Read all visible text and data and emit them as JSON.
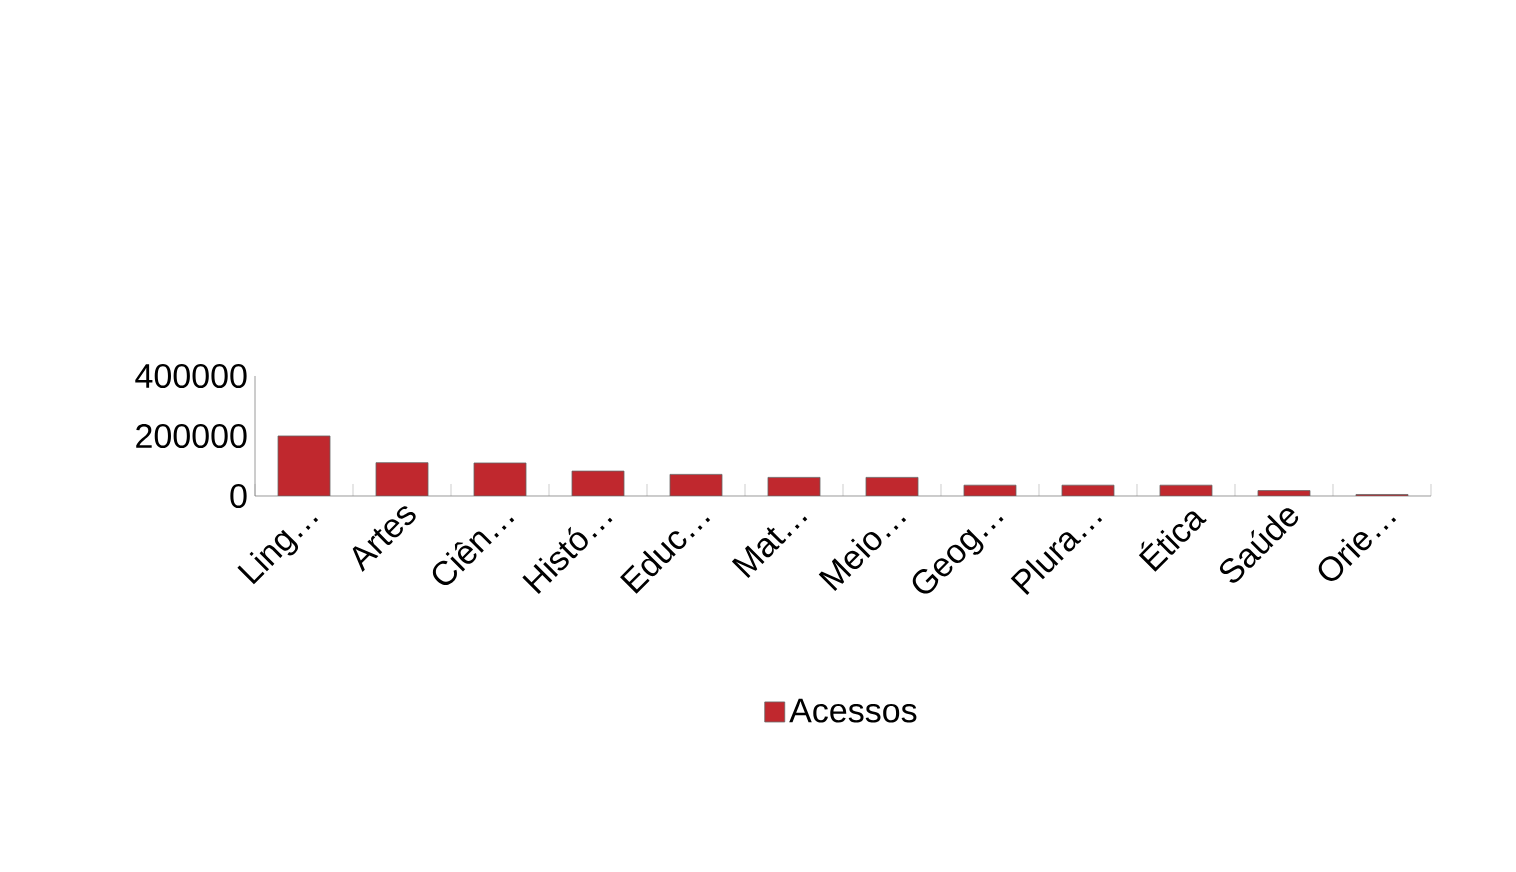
{
  "chart_data": {
    "type": "bar",
    "categories": [
      "Ling…",
      "Artes",
      "Ciên…",
      "Histó…",
      "Educ…",
      "Mat…",
      "Meio…",
      "Geog…",
      "Plura…",
      "Ética",
      "Saúde",
      "Orie…"
    ],
    "series": [
      {
        "name": "Acessos",
        "color": "#c0282e",
        "values": [
          200000,
          111000,
          110000,
          83000,
          72000,
          62000,
          62000,
          36000,
          36000,
          36000,
          18000,
          5000
        ]
      }
    ],
    "ylim": [
      0,
      400000
    ],
    "yticks": [
      0,
      200000,
      400000
    ],
    "legend": "bottom"
  }
}
